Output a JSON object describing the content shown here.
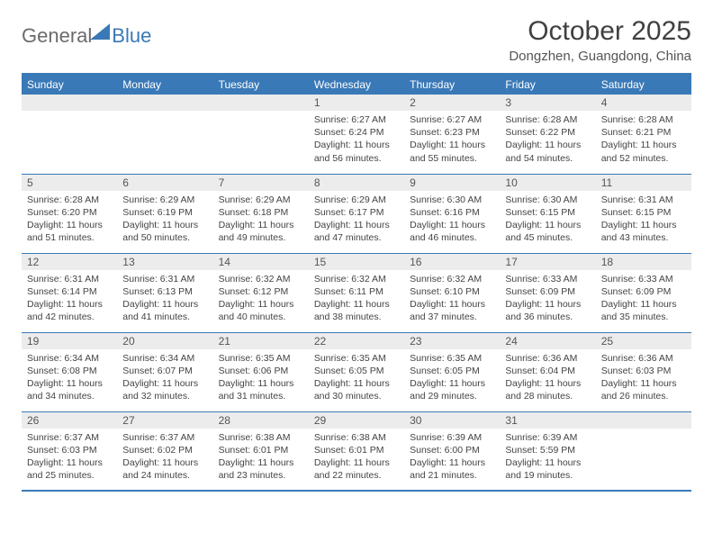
{
  "logo": {
    "text1": "General",
    "text2": "Blue"
  },
  "title": "October 2025",
  "subtitle": "Dongzhen, Guangdong, China",
  "colors": {
    "accent": "#3a79b7",
    "daynum_bg": "#ececec",
    "text": "#444444",
    "title_color": "#404040"
  },
  "typography": {
    "title_fontsize": 30,
    "subtitle_fontsize": 15,
    "header_fontsize": 12,
    "daynum_fontsize": 12,
    "cell_fontsize": 10.5
  },
  "day_headers": [
    "Sunday",
    "Monday",
    "Tuesday",
    "Wednesday",
    "Thursday",
    "Friday",
    "Saturday"
  ],
  "weeks": [
    [
      {
        "num": "",
        "sunrise": "",
        "sunset": "",
        "daylight": ""
      },
      {
        "num": "",
        "sunrise": "",
        "sunset": "",
        "daylight": ""
      },
      {
        "num": "",
        "sunrise": "",
        "sunset": "",
        "daylight": ""
      },
      {
        "num": "1",
        "sunrise": "Sunrise: 6:27 AM",
        "sunset": "Sunset: 6:24 PM",
        "daylight": "Daylight: 11 hours and 56 minutes."
      },
      {
        "num": "2",
        "sunrise": "Sunrise: 6:27 AM",
        "sunset": "Sunset: 6:23 PM",
        "daylight": "Daylight: 11 hours and 55 minutes."
      },
      {
        "num": "3",
        "sunrise": "Sunrise: 6:28 AM",
        "sunset": "Sunset: 6:22 PM",
        "daylight": "Daylight: 11 hours and 54 minutes."
      },
      {
        "num": "4",
        "sunrise": "Sunrise: 6:28 AM",
        "sunset": "Sunset: 6:21 PM",
        "daylight": "Daylight: 11 hours and 52 minutes."
      }
    ],
    [
      {
        "num": "5",
        "sunrise": "Sunrise: 6:28 AM",
        "sunset": "Sunset: 6:20 PM",
        "daylight": "Daylight: 11 hours and 51 minutes."
      },
      {
        "num": "6",
        "sunrise": "Sunrise: 6:29 AM",
        "sunset": "Sunset: 6:19 PM",
        "daylight": "Daylight: 11 hours and 50 minutes."
      },
      {
        "num": "7",
        "sunrise": "Sunrise: 6:29 AM",
        "sunset": "Sunset: 6:18 PM",
        "daylight": "Daylight: 11 hours and 49 minutes."
      },
      {
        "num": "8",
        "sunrise": "Sunrise: 6:29 AM",
        "sunset": "Sunset: 6:17 PM",
        "daylight": "Daylight: 11 hours and 47 minutes."
      },
      {
        "num": "9",
        "sunrise": "Sunrise: 6:30 AM",
        "sunset": "Sunset: 6:16 PM",
        "daylight": "Daylight: 11 hours and 46 minutes."
      },
      {
        "num": "10",
        "sunrise": "Sunrise: 6:30 AM",
        "sunset": "Sunset: 6:15 PM",
        "daylight": "Daylight: 11 hours and 45 minutes."
      },
      {
        "num": "11",
        "sunrise": "Sunrise: 6:31 AM",
        "sunset": "Sunset: 6:15 PM",
        "daylight": "Daylight: 11 hours and 43 minutes."
      }
    ],
    [
      {
        "num": "12",
        "sunrise": "Sunrise: 6:31 AM",
        "sunset": "Sunset: 6:14 PM",
        "daylight": "Daylight: 11 hours and 42 minutes."
      },
      {
        "num": "13",
        "sunrise": "Sunrise: 6:31 AM",
        "sunset": "Sunset: 6:13 PM",
        "daylight": "Daylight: 11 hours and 41 minutes."
      },
      {
        "num": "14",
        "sunrise": "Sunrise: 6:32 AM",
        "sunset": "Sunset: 6:12 PM",
        "daylight": "Daylight: 11 hours and 40 minutes."
      },
      {
        "num": "15",
        "sunrise": "Sunrise: 6:32 AM",
        "sunset": "Sunset: 6:11 PM",
        "daylight": "Daylight: 11 hours and 38 minutes."
      },
      {
        "num": "16",
        "sunrise": "Sunrise: 6:32 AM",
        "sunset": "Sunset: 6:10 PM",
        "daylight": "Daylight: 11 hours and 37 minutes."
      },
      {
        "num": "17",
        "sunrise": "Sunrise: 6:33 AM",
        "sunset": "Sunset: 6:09 PM",
        "daylight": "Daylight: 11 hours and 36 minutes."
      },
      {
        "num": "18",
        "sunrise": "Sunrise: 6:33 AM",
        "sunset": "Sunset: 6:09 PM",
        "daylight": "Daylight: 11 hours and 35 minutes."
      }
    ],
    [
      {
        "num": "19",
        "sunrise": "Sunrise: 6:34 AM",
        "sunset": "Sunset: 6:08 PM",
        "daylight": "Daylight: 11 hours and 34 minutes."
      },
      {
        "num": "20",
        "sunrise": "Sunrise: 6:34 AM",
        "sunset": "Sunset: 6:07 PM",
        "daylight": "Daylight: 11 hours and 32 minutes."
      },
      {
        "num": "21",
        "sunrise": "Sunrise: 6:35 AM",
        "sunset": "Sunset: 6:06 PM",
        "daylight": "Daylight: 11 hours and 31 minutes."
      },
      {
        "num": "22",
        "sunrise": "Sunrise: 6:35 AM",
        "sunset": "Sunset: 6:05 PM",
        "daylight": "Daylight: 11 hours and 30 minutes."
      },
      {
        "num": "23",
        "sunrise": "Sunrise: 6:35 AM",
        "sunset": "Sunset: 6:05 PM",
        "daylight": "Daylight: 11 hours and 29 minutes."
      },
      {
        "num": "24",
        "sunrise": "Sunrise: 6:36 AM",
        "sunset": "Sunset: 6:04 PM",
        "daylight": "Daylight: 11 hours and 28 minutes."
      },
      {
        "num": "25",
        "sunrise": "Sunrise: 6:36 AM",
        "sunset": "Sunset: 6:03 PM",
        "daylight": "Daylight: 11 hours and 26 minutes."
      }
    ],
    [
      {
        "num": "26",
        "sunrise": "Sunrise: 6:37 AM",
        "sunset": "Sunset: 6:03 PM",
        "daylight": "Daylight: 11 hours and 25 minutes."
      },
      {
        "num": "27",
        "sunrise": "Sunrise: 6:37 AM",
        "sunset": "Sunset: 6:02 PM",
        "daylight": "Daylight: 11 hours and 24 minutes."
      },
      {
        "num": "28",
        "sunrise": "Sunrise: 6:38 AM",
        "sunset": "Sunset: 6:01 PM",
        "daylight": "Daylight: 11 hours and 23 minutes."
      },
      {
        "num": "29",
        "sunrise": "Sunrise: 6:38 AM",
        "sunset": "Sunset: 6:01 PM",
        "daylight": "Daylight: 11 hours and 22 minutes."
      },
      {
        "num": "30",
        "sunrise": "Sunrise: 6:39 AM",
        "sunset": "Sunset: 6:00 PM",
        "daylight": "Daylight: 11 hours and 21 minutes."
      },
      {
        "num": "31",
        "sunrise": "Sunrise: 6:39 AM",
        "sunset": "Sunset: 5:59 PM",
        "daylight": "Daylight: 11 hours and 19 minutes."
      },
      {
        "num": "",
        "sunrise": "",
        "sunset": "",
        "daylight": ""
      }
    ]
  ]
}
